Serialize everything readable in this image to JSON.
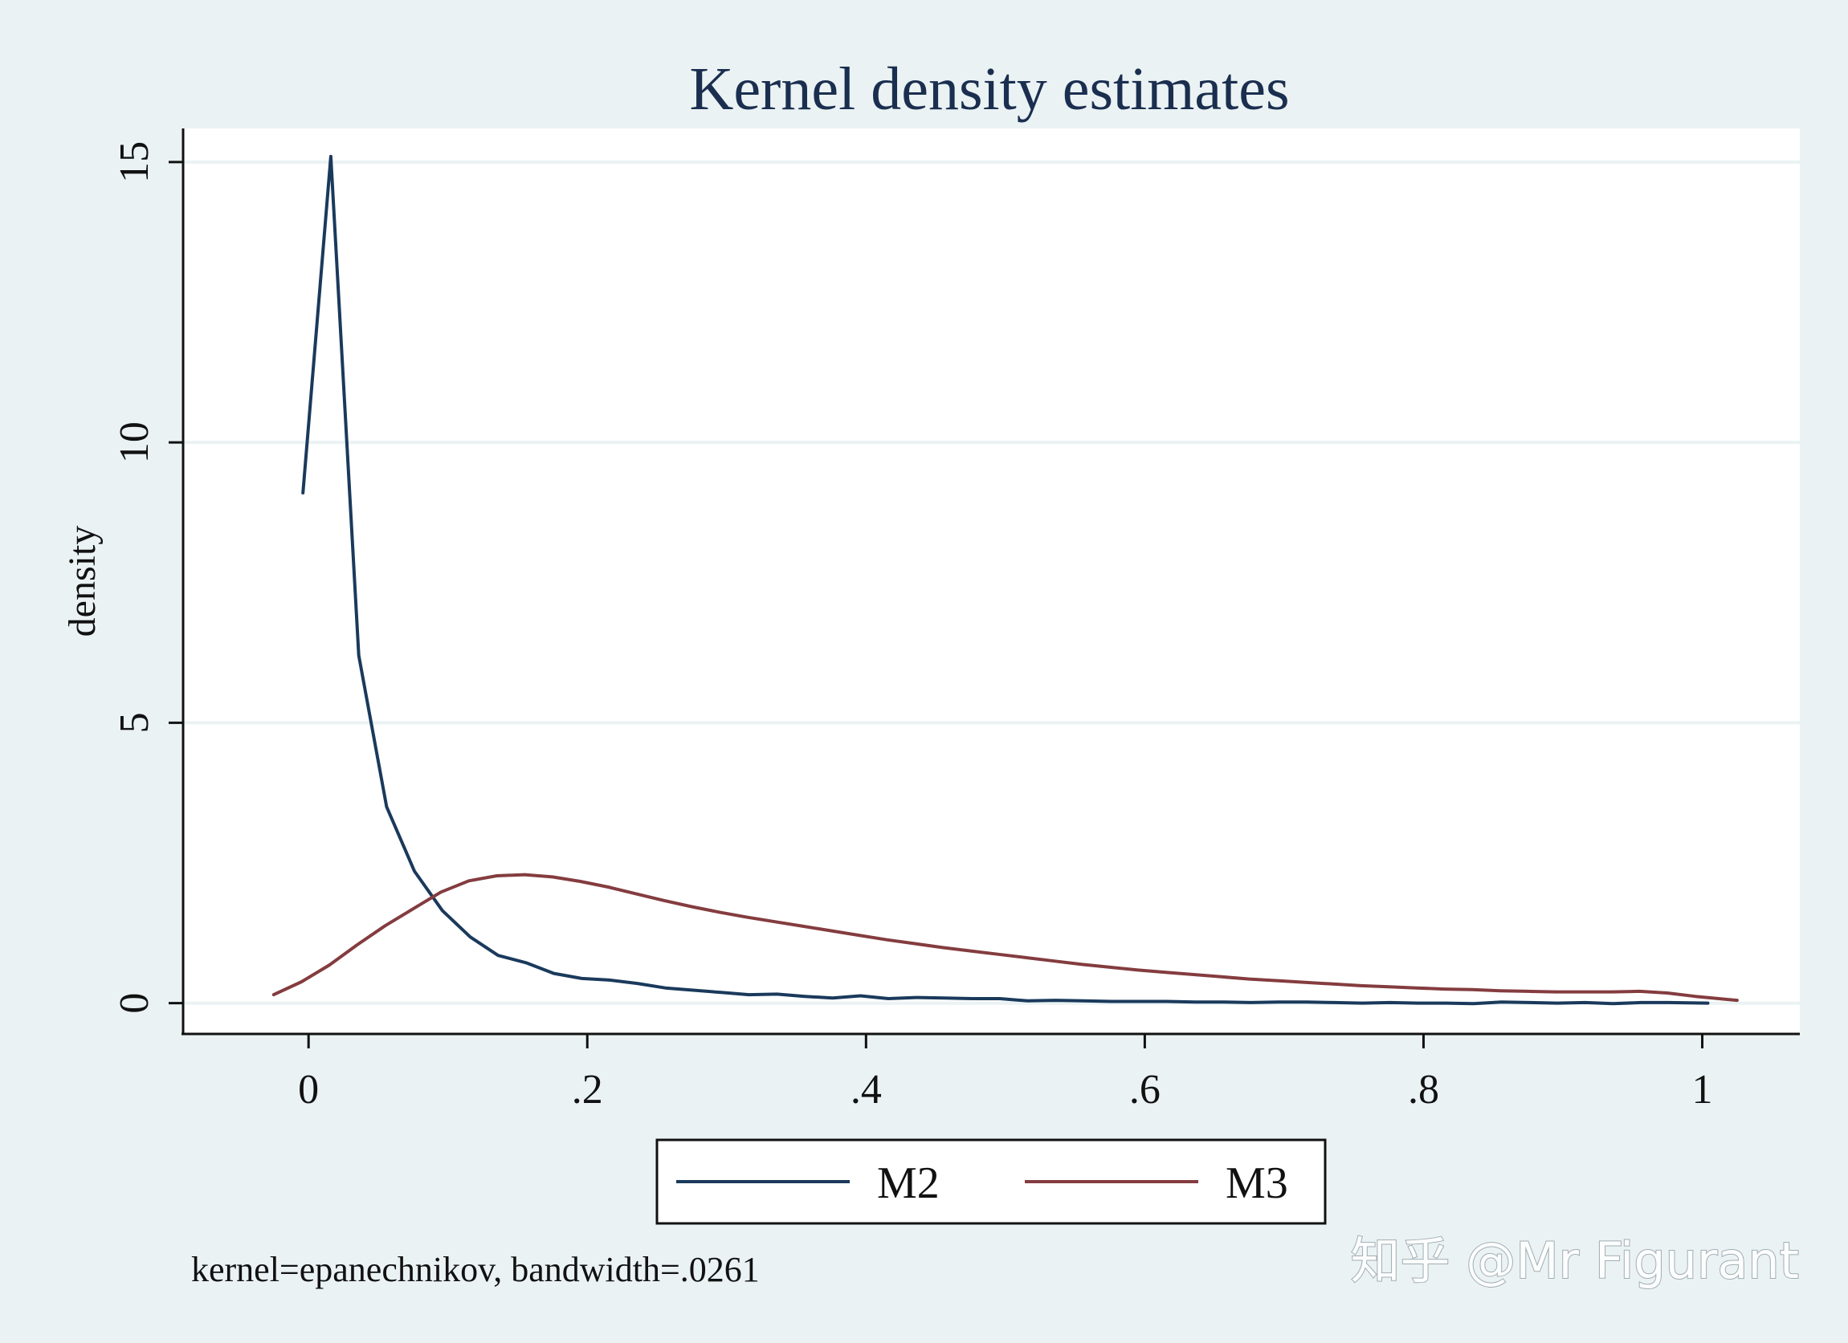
{
  "chart_data": {
    "type": "line",
    "title": "Kernel density estimates",
    "xlabel": "",
    "ylabel": "density",
    "xlim": [
      -0.09,
      1.07
    ],
    "ylim": [
      -0.55,
      15.6
    ],
    "x_ticks": [
      0,
      0.2,
      0.4,
      0.6,
      0.8,
      1
    ],
    "x_tick_labels": [
      "0",
      ".2",
      ".4",
      ".6",
      ".8",
      "1"
    ],
    "y_ticks": [
      0,
      5,
      10,
      15
    ],
    "y_tick_labels": [
      "0",
      "5",
      "10",
      "15"
    ],
    "grid": true,
    "legend_position": "bottom-center",
    "series": [
      {
        "name": "M2",
        "color": "#1a3a5c",
        "x": [
          -0.004,
          0.016,
          0.036,
          0.056,
          0.076,
          0.096,
          0.116,
          0.136,
          0.156,
          0.176,
          0.196,
          0.216,
          0.236,
          0.256,
          0.276,
          0.296,
          0.316,
          0.336,
          0.356,
          0.376,
          0.396,
          0.416,
          0.436,
          0.456,
          0.476,
          0.496,
          0.516,
          0.536,
          0.556,
          0.576,
          0.596,
          0.616,
          0.636,
          0.656,
          0.676,
          0.696,
          0.716,
          0.736,
          0.756,
          0.776,
          0.796,
          0.816,
          0.836,
          0.856,
          0.876,
          0.896,
          0.916,
          0.936,
          0.956,
          0.976,
          1.004
        ],
        "y": [
          9.1,
          15.1,
          6.2,
          3.5,
          2.35,
          1.65,
          1.18,
          0.85,
          0.72,
          0.53,
          0.44,
          0.41,
          0.35,
          0.27,
          0.23,
          0.19,
          0.15,
          0.16,
          0.12,
          0.09,
          0.13,
          0.08,
          0.1,
          0.09,
          0.08,
          0.08,
          0.04,
          0.05,
          0.04,
          0.03,
          0.03,
          0.03,
          0.02,
          0.02,
          0.01,
          0.02,
          0.02,
          0.01,
          0.0,
          0.01,
          0.0,
          0.0,
          -0.01,
          0.02,
          0.01,
          0.0,
          0.01,
          -0.01,
          0.01,
          0.01,
          0.0
        ]
      },
      {
        "name": "M3",
        "color": "#843c3f",
        "x": [
          -0.025,
          -0.005,
          0.015,
          0.035,
          0.055,
          0.075,
          0.095,
          0.115,
          0.135,
          0.155,
          0.175,
          0.195,
          0.215,
          0.235,
          0.255,
          0.275,
          0.295,
          0.315,
          0.335,
          0.355,
          0.375,
          0.395,
          0.415,
          0.435,
          0.455,
          0.475,
          0.495,
          0.515,
          0.535,
          0.555,
          0.575,
          0.595,
          0.615,
          0.635,
          0.655,
          0.675,
          0.695,
          0.715,
          0.735,
          0.755,
          0.775,
          0.795,
          0.815,
          0.835,
          0.855,
          0.875,
          0.895,
          0.915,
          0.935,
          0.955,
          0.975,
          0.995,
          1.025
        ],
        "y": [
          0.15,
          0.38,
          0.68,
          1.04,
          1.38,
          1.68,
          1.98,
          2.18,
          2.27,
          2.29,
          2.25,
          2.17,
          2.07,
          1.95,
          1.83,
          1.72,
          1.62,
          1.53,
          1.45,
          1.37,
          1.29,
          1.21,
          1.13,
          1.06,
          0.99,
          0.93,
          0.87,
          0.81,
          0.75,
          0.69,
          0.64,
          0.59,
          0.55,
          0.51,
          0.47,
          0.43,
          0.4,
          0.37,
          0.34,
          0.31,
          0.29,
          0.27,
          0.25,
          0.24,
          0.22,
          0.21,
          0.2,
          0.2,
          0.2,
          0.21,
          0.18,
          0.12,
          0.05
        ]
      }
    ],
    "legend": [
      "M2",
      "M3"
    ],
    "note": "kernel=epanechnikov, bandwidth=.0261"
  },
  "watermark": "知乎 @Mr Figurant"
}
